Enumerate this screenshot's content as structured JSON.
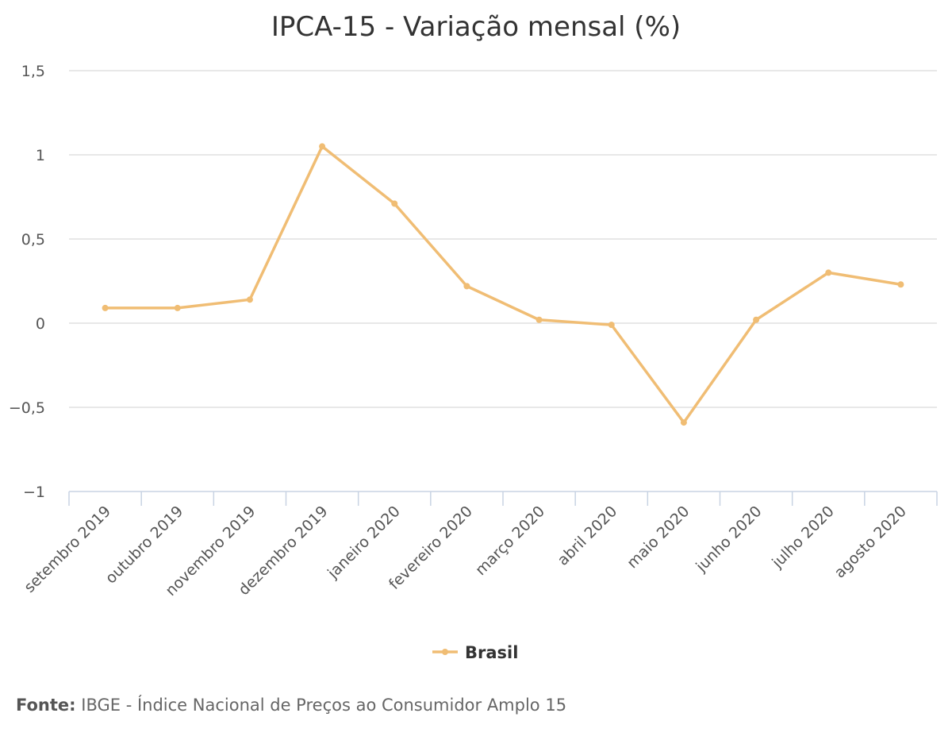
{
  "chart_data": {
    "type": "line",
    "title": "IPCA-15 - Variação mensal (%)",
    "xlabel": "",
    "ylabel": "",
    "categories": [
      "setembro 2019",
      "outubro 2019",
      "novembro 2019",
      "dezembro 2019",
      "janeiro 2020",
      "fevereiro 2020",
      "março 2020",
      "abril 2020",
      "maio 2020",
      "junho 2020",
      "julho 2020",
      "agosto 2020"
    ],
    "series": [
      {
        "name": "Brasil",
        "color": "#f0bd74",
        "values": [
          0.09,
          0.09,
          0.14,
          1.05,
          0.71,
          0.22,
          0.02,
          -0.01,
          -0.59,
          0.02,
          0.3,
          0.23
        ]
      }
    ],
    "ylim": [
      -1,
      1.5
    ],
    "yticks": [
      {
        "value": 1.5,
        "label": "1,5"
      },
      {
        "value": 1,
        "label": "1"
      },
      {
        "value": 0.5,
        "label": "0,5"
      },
      {
        "value": 0,
        "label": "0"
      },
      {
        "value": -0.5,
        "label": "−0,5"
      },
      {
        "value": -1,
        "label": "−1"
      }
    ],
    "grid": true,
    "legend_position": "bottom-center"
  },
  "source": {
    "label": "Fonte:",
    "text": "IBGE - Índice Nacional de Preços ao Consumidor Amplo 15"
  }
}
